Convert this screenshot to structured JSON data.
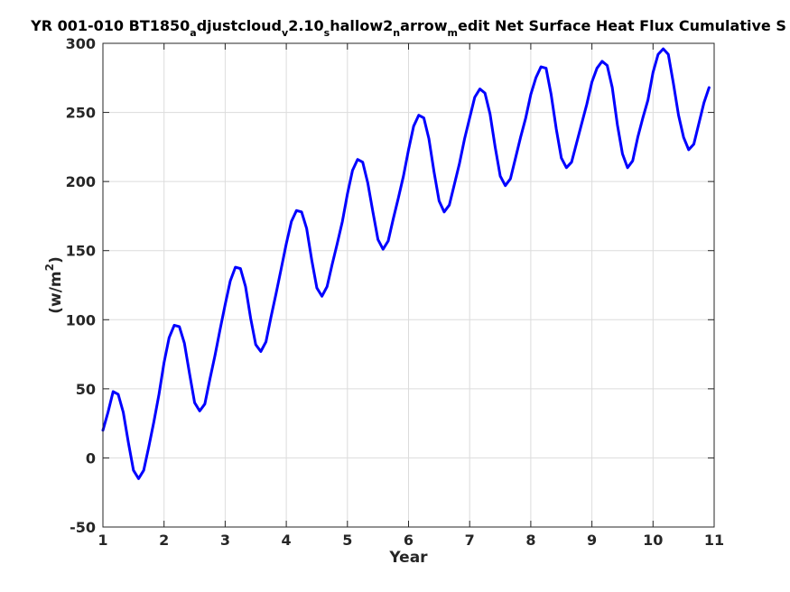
{
  "chart_data": {
    "type": "line",
    "title": "YR 001-010 BT1850_adjustcloud_v2.10_shallow2_narrow_medit Net Surface Heat Flux  Cumulative S",
    "title_segments": [
      {
        "text": "YR 001-010 BT1850",
        "sub": false
      },
      {
        "text": "a",
        "sub": true
      },
      {
        "text": "djustcloud",
        "sub": false
      },
      {
        "text": "v",
        "sub": true
      },
      {
        "text": "2.10",
        "sub": false
      },
      {
        "text": "s",
        "sub": true
      },
      {
        "text": "hallow2",
        "sub": false
      },
      {
        "text": "n",
        "sub": true
      },
      {
        "text": "arrow",
        "sub": false
      },
      {
        "text": "m",
        "sub": true
      },
      {
        "text": "edit Net Surface Heat Flux  Cumulative S",
        "sub": false
      }
    ],
    "xlabel": "Year",
    "ylabel_main": "(w/m",
    "ylabel_sup": "2",
    "ylabel_end": ")",
    "xlim": [
      1,
      11
    ],
    "ylim": [
      -50,
      300
    ],
    "xticks": [
      1,
      2,
      3,
      4,
      5,
      6,
      7,
      8,
      9,
      10,
      11
    ],
    "xtick_labels": [
      "1",
      "2",
      "3",
      "4",
      "5",
      "6",
      "7",
      "8",
      "9",
      "10",
      "11"
    ],
    "yticks": [
      -50,
      0,
      50,
      100,
      150,
      200,
      250,
      300
    ],
    "ytick_labels": [
      "-50",
      "0",
      "50",
      "100",
      "150",
      "200",
      "250",
      "300"
    ],
    "grid": true,
    "series": [
      {
        "color": "#0000ff",
        "x": [
          1.0,
          1.083,
          1.167,
          1.25,
          1.333,
          1.417,
          1.5,
          1.583,
          1.667,
          1.75,
          1.833,
          1.917,
          2.0,
          2.083,
          2.167,
          2.25,
          2.333,
          2.417,
          2.5,
          2.583,
          2.667,
          2.75,
          2.833,
          2.917,
          3.0,
          3.083,
          3.167,
          3.25,
          3.333,
          3.417,
          3.5,
          3.583,
          3.667,
          3.75,
          3.833,
          3.917,
          4.0,
          4.083,
          4.167,
          4.25,
          4.333,
          4.417,
          4.5,
          4.583,
          4.667,
          4.75,
          4.833,
          4.917,
          5.0,
          5.083,
          5.167,
          5.25,
          5.333,
          5.417,
          5.5,
          5.583,
          5.667,
          5.75,
          5.833,
          5.917,
          6.0,
          6.083,
          6.167,
          6.25,
          6.333,
          6.417,
          6.5,
          6.583,
          6.667,
          6.75,
          6.833,
          6.917,
          7.0,
          7.083,
          7.167,
          7.25,
          7.333,
          7.417,
          7.5,
          7.583,
          7.667,
          7.75,
          7.833,
          7.917,
          8.0,
          8.083,
          8.167,
          8.25,
          8.333,
          8.417,
          8.5,
          8.583,
          8.667,
          8.75,
          8.833,
          8.917,
          9.0,
          9.083,
          9.167,
          9.25,
          9.333,
          9.417,
          9.5,
          9.583,
          9.667,
          9.75,
          9.833,
          9.917,
          10.0,
          10.083,
          10.167,
          10.25,
          10.333,
          10.417,
          10.5,
          10.583,
          10.667,
          10.75,
          10.833,
          10.917
        ],
        "y": [
          20,
          33,
          48,
          46,
          33,
          11,
          -9,
          -15,
          -9,
          8,
          26,
          46,
          69,
          87,
          96,
          95,
          83,
          61,
          40,
          34,
          39,
          57,
          74,
          93,
          111,
          128,
          138,
          137,
          124,
          101,
          82,
          77,
          84,
          102,
          119,
          137,
          155,
          171,
          179,
          178,
          166,
          143,
          123,
          117,
          124,
          140,
          155,
          171,
          191,
          208,
          216,
          214,
          199,
          178,
          158,
          151,
          157,
          173,
          188,
          204,
          223,
          240,
          248,
          246,
          231,
          207,
          186,
          178,
          183,
          198,
          213,
          231,
          246,
          261,
          267,
          264,
          249,
          225,
          204,
          197,
          202,
          217,
          232,
          246,
          263,
          275,
          283,
          282,
          263,
          238,
          217,
          210,
          214,
          228,
          242,
          256,
          272,
          282,
          287,
          284,
          268,
          241,
          220,
          210,
          215,
          232,
          246,
          259,
          279,
          292,
          296,
          292,
          271,
          248,
          232,
          223,
          227,
          242,
          257,
          268
        ]
      }
    ]
  }
}
